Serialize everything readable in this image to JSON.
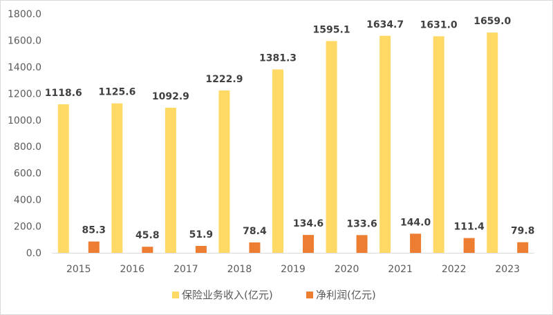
{
  "chart_data": {
    "type": "bar",
    "categories": [
      "2015",
      "2016",
      "2017",
      "2018",
      "2019",
      "2020",
      "2021",
      "2022",
      "2023"
    ],
    "series": [
      {
        "name": "保险业务收入(亿元)",
        "color": "#FFD966",
        "values": [
          1118.6,
          1125.6,
          1092.9,
          1222.9,
          1381.3,
          1595.1,
          1634.7,
          1631.0,
          1659.0
        ],
        "labels": [
          "1118.6",
          "1125.6",
          "1092.9",
          "1222.9",
          "1381.3",
          "1595.1",
          "1634.7",
          "1631.0",
          "1659.0"
        ]
      },
      {
        "name": "净利润(亿元)",
        "color": "#ED7D31",
        "values": [
          85.3,
          45.8,
          51.9,
          78.4,
          134.6,
          133.6,
          144.0,
          111.4,
          79.8
        ],
        "labels": [
          "85.3",
          "45.8",
          "51.9",
          "78.4",
          "134.6",
          "133.6",
          "144.0",
          "111.4",
          "79.8"
        ]
      }
    ],
    "title": "",
    "xlabel": "",
    "ylabel": "",
    "ylim": [
      0,
      1800
    ],
    "yticks": [
      "0.0",
      "200.0",
      "400.0",
      "600.0",
      "800.0",
      "1000.0",
      "1200.0",
      "1400.0",
      "1600.0",
      "1800.0"
    ],
    "grid": false,
    "legend": "bottom-center"
  }
}
